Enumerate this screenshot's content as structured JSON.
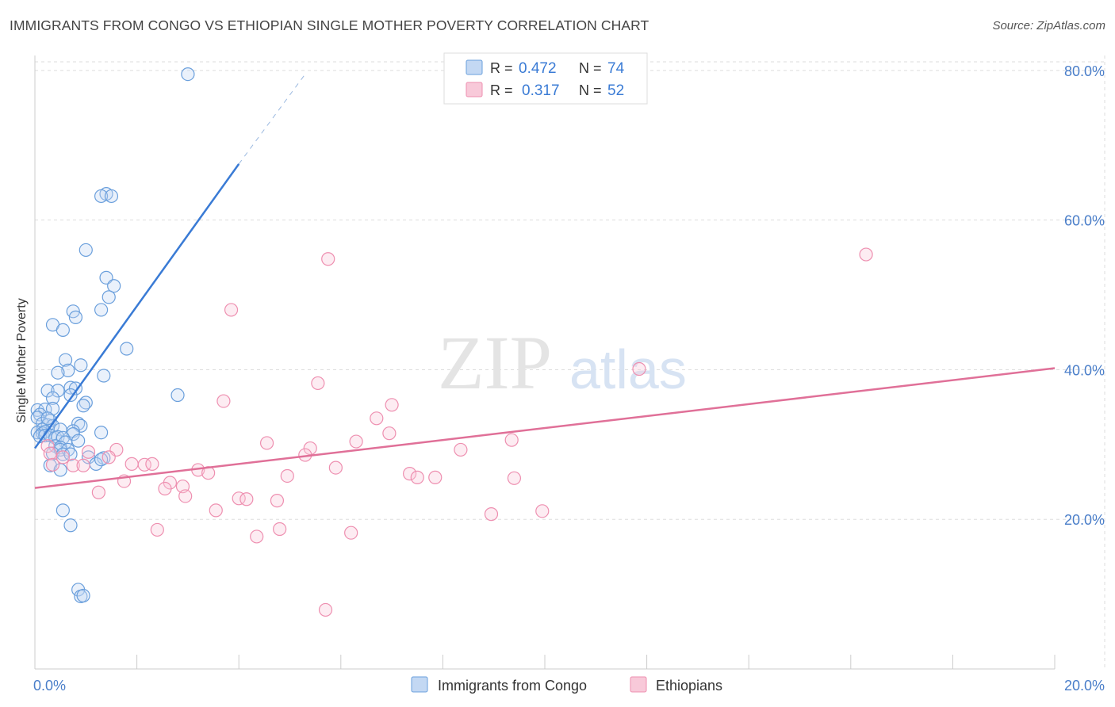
{
  "title": "IMMIGRANTS FROM CONGO VS ETHIOPIAN SINGLE MOTHER POVERTY CORRELATION CHART",
  "source": "Source: ZipAtlas.com",
  "watermark": {
    "zip": "ZIP",
    "atlas": "atlas"
  },
  "colors": {
    "blue": "#6a9fdc",
    "blue_fill": "#c3d8f3",
    "blue_line": "#3a7bd5",
    "pink": "#ee8fb0",
    "pink_fill": "#f8c9d9",
    "pink_line": "#e07098",
    "tick_text": "#4a7ec9",
    "grid": "#dddddd"
  },
  "legend_top": [
    {
      "r_label": "R =",
      "r_value": "0.472",
      "n_label": "N =",
      "n_value": "74",
      "series": "blue"
    },
    {
      "r_label": "R =",
      "r_value": "0.317",
      "n_label": "N =",
      "n_value": "52",
      "series": "pink"
    }
  ],
  "chart_data": {
    "type": "scatter",
    "title": "IMMIGRANTS FROM CONGO VS ETHIOPIAN SINGLE MOTHER POVERTY CORRELATION CHART",
    "xlabel": "",
    "ylabel": "Single Mother Poverty",
    "xlim": [
      0,
      20
    ],
    "ylim": [
      0,
      82
    ],
    "x_tick_labels": [
      {
        "value": 0,
        "label": "0.0%"
      },
      {
        "value": 20,
        "label": "20.0%"
      }
    ],
    "y_tick_labels": [
      {
        "value": 20,
        "label": "20.0%"
      },
      {
        "value": 40,
        "label": "40.0%"
      },
      {
        "value": 60,
        "label": "60.0%"
      },
      {
        "value": 80,
        "label": "80.0%"
      }
    ],
    "x_minor_ticks": [
      2,
      4,
      6,
      8,
      10,
      12,
      14,
      16,
      18,
      20
    ],
    "grid": true,
    "legend_position": "bottom",
    "series": [
      {
        "name": "Immigrants from Congo",
        "color": "blue",
        "trend": {
          "x_start": 0,
          "y_start": 29.5,
          "x_solid_end": 4.0,
          "y_solid_end": 67.5,
          "x_dash_end": 5.3,
          "y_dash_end": 79.5
        },
        "points": [
          [
            3.0,
            79.5
          ],
          [
            1.4,
            63.5
          ],
          [
            1.3,
            63.2
          ],
          [
            1.5,
            63.2
          ],
          [
            1.0,
            56.0
          ],
          [
            1.4,
            52.3
          ],
          [
            1.55,
            51.2
          ],
          [
            1.45,
            49.7
          ],
          [
            0.75,
            47.8
          ],
          [
            1.3,
            48.0
          ],
          [
            0.8,
            47.0
          ],
          [
            0.35,
            46.0
          ],
          [
            0.55,
            45.3
          ],
          [
            1.8,
            42.8
          ],
          [
            0.6,
            41.3
          ],
          [
            0.65,
            39.9
          ],
          [
            0.9,
            40.6
          ],
          [
            0.45,
            39.6
          ],
          [
            1.35,
            39.2
          ],
          [
            0.7,
            37.6
          ],
          [
            0.25,
            37.2
          ],
          [
            0.8,
            37.5
          ],
          [
            0.45,
            37.2
          ],
          [
            0.7,
            36.6
          ],
          [
            0.35,
            36.2
          ],
          [
            2.8,
            36.6
          ],
          [
            1.0,
            35.6
          ],
          [
            0.95,
            35.2
          ],
          [
            0.05,
            34.6
          ],
          [
            0.2,
            34.7
          ],
          [
            0.35,
            34.8
          ],
          [
            0.1,
            34.0
          ],
          [
            0.05,
            33.6
          ],
          [
            0.3,
            33.2
          ],
          [
            0.15,
            32.8
          ],
          [
            0.25,
            32.6
          ],
          [
            0.35,
            32.5
          ],
          [
            0.85,
            32.8
          ],
          [
            0.9,
            32.5
          ],
          [
            0.15,
            32.0
          ],
          [
            0.5,
            32.0
          ],
          [
            0.05,
            31.6
          ],
          [
            0.15,
            31.5
          ],
          [
            0.2,
            31.7
          ],
          [
            0.75,
            31.8
          ],
          [
            0.75,
            31.4
          ],
          [
            1.3,
            31.6
          ],
          [
            0.1,
            31.1
          ],
          [
            0.2,
            31.2
          ],
          [
            0.3,
            31.2
          ],
          [
            0.4,
            30.9
          ],
          [
            0.45,
            31.0
          ],
          [
            0.55,
            30.9
          ],
          [
            0.6,
            30.3
          ],
          [
            0.85,
            30.5
          ],
          [
            0.4,
            29.8
          ],
          [
            0.5,
            29.6
          ],
          [
            0.5,
            29.3
          ],
          [
            0.65,
            29.3
          ],
          [
            0.35,
            28.8
          ],
          [
            0.55,
            28.7
          ],
          [
            0.7,
            28.7
          ],
          [
            1.05,
            28.3
          ],
          [
            1.35,
            28.2
          ],
          [
            1.2,
            27.4
          ],
          [
            0.3,
            27.2
          ],
          [
            0.5,
            26.6
          ],
          [
            0.55,
            21.2
          ],
          [
            0.7,
            19.2
          ],
          [
            0.85,
            10.6
          ],
          [
            0.9,
            9.7
          ],
          [
            0.95,
            9.8
          ],
          [
            1.3,
            28.0
          ],
          [
            0.25,
            33.5
          ]
        ]
      },
      {
        "name": "Ethiopians",
        "color": "pink",
        "trend": {
          "x_start": 0,
          "y_start": 24.2,
          "x_end": 20,
          "y_end": 40.2
        },
        "points": [
          [
            16.3,
            55.4
          ],
          [
            5.75,
            54.8
          ],
          [
            3.85,
            48.0
          ],
          [
            11.85,
            40.1
          ],
          [
            5.55,
            38.2
          ],
          [
            3.7,
            35.8
          ],
          [
            7.0,
            35.3
          ],
          [
            6.7,
            33.5
          ],
          [
            6.95,
            31.5
          ],
          [
            4.55,
            30.2
          ],
          [
            6.3,
            30.4
          ],
          [
            9.35,
            30.6
          ],
          [
            5.4,
            29.5
          ],
          [
            8.35,
            29.3
          ],
          [
            5.3,
            28.6
          ],
          [
            1.6,
            29.3
          ],
          [
            1.05,
            29.0
          ],
          [
            0.25,
            29.8
          ],
          [
            0.3,
            28.8
          ],
          [
            0.55,
            28.3
          ],
          [
            1.45,
            28.3
          ],
          [
            1.9,
            27.4
          ],
          [
            2.15,
            27.3
          ],
          [
            2.3,
            27.4
          ],
          [
            0.35,
            27.3
          ],
          [
            0.75,
            27.2
          ],
          [
            0.95,
            27.2
          ],
          [
            3.2,
            26.6
          ],
          [
            3.4,
            26.2
          ],
          [
            5.9,
            26.9
          ],
          [
            7.35,
            26.1
          ],
          [
            7.5,
            25.6
          ],
          [
            7.85,
            25.6
          ],
          [
            9.4,
            25.5
          ],
          [
            4.95,
            25.8
          ],
          [
            1.75,
            25.1
          ],
          [
            2.65,
            24.9
          ],
          [
            2.55,
            24.1
          ],
          [
            2.9,
            24.4
          ],
          [
            1.25,
            23.6
          ],
          [
            2.95,
            23.1
          ],
          [
            4.0,
            22.8
          ],
          [
            4.15,
            22.7
          ],
          [
            4.75,
            22.5
          ],
          [
            3.55,
            21.2
          ],
          [
            8.95,
            20.7
          ],
          [
            9.95,
            21.1
          ],
          [
            2.4,
            18.6
          ],
          [
            4.8,
            18.7
          ],
          [
            6.2,
            18.2
          ],
          [
            4.35,
            17.7
          ],
          [
            5.7,
            7.9
          ]
        ]
      }
    ]
  }
}
